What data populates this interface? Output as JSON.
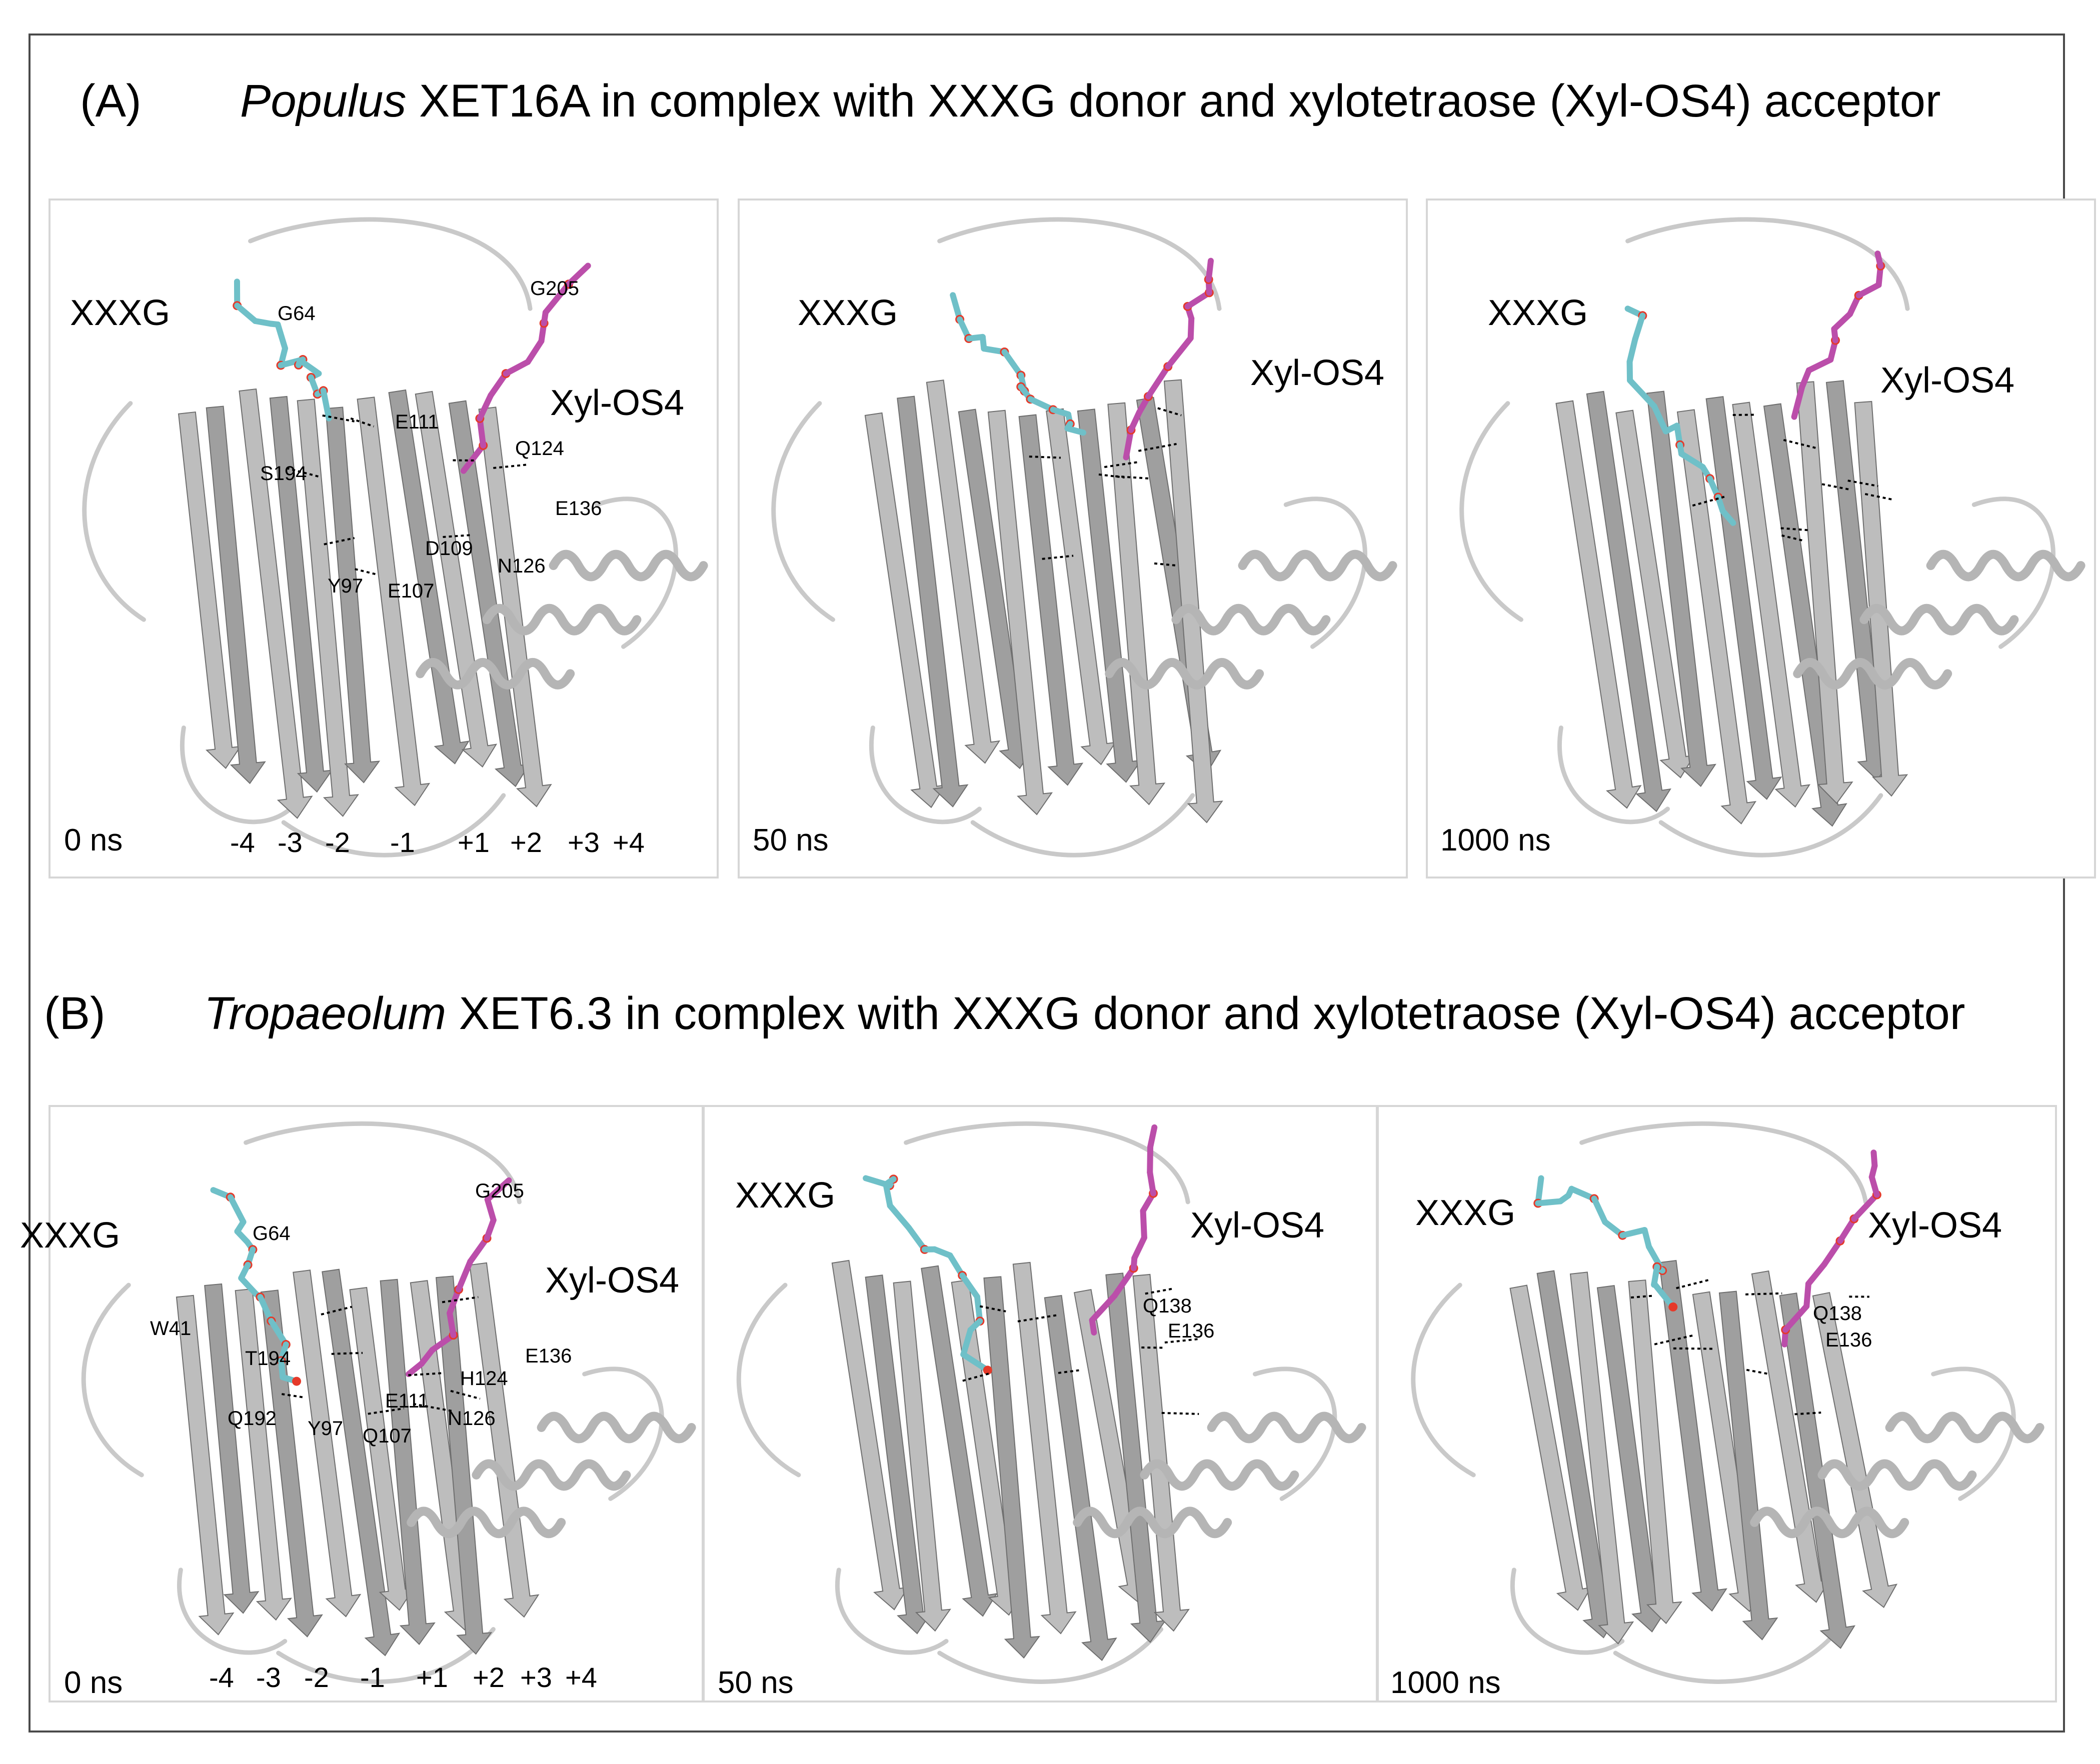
{
  "sections": [
    {
      "tag": "(A)",
      "genus": "Populus",
      "rest": " XET16A in complex with XXXG donor and xylotetraose (Xyl-OS4) acceptor",
      "panels": [
        {
          "time": "0 ns",
          "donor": "XXXG",
          "acceptor": "Xyl-OS4",
          "residues": [
            "G205",
            "G64",
            "E111",
            "Q124",
            "S194",
            "E136",
            "D109",
            "N126",
            "Y97",
            "E107"
          ],
          "subsites": [
            "-4",
            "-3",
            "-2",
            "-1",
            "+1",
            "+2",
            "+3",
            "+4"
          ]
        },
        {
          "time": "50 ns",
          "donor": "XXXG",
          "acceptor": "Xyl-OS4"
        },
        {
          "time": "1000 ns",
          "donor": "XXXG",
          "acceptor": "Xyl-OS4"
        }
      ]
    },
    {
      "tag": "(B)",
      "genus": "Tropaeolum",
      "rest": " XET6.3 in complex with XXXG donor and xylotetraose (Xyl-OS4) acceptor",
      "panels": [
        {
          "time": "0 ns",
          "donor": "XXXG",
          "acceptor": "Xyl-OS4",
          "residues": [
            "G205",
            "G64",
            "W41",
            "T194",
            "E136",
            "H124",
            "E111",
            "Q192",
            "Y97",
            "Q107",
            "N126"
          ],
          "subsites": [
            "-4",
            "-3",
            "-2",
            "-1",
            "+1",
            "+2",
            "+3",
            "+4"
          ]
        },
        {
          "time": "50 ns",
          "donor": "XXXG",
          "acceptor": "Xyl-OS4",
          "residues": [
            "Q138",
            "E136"
          ]
        },
        {
          "time": "1000 ns",
          "donor": "XXXG",
          "acceptor": "Xyl-OS4",
          "residues": [
            "Q138",
            "E136"
          ]
        }
      ]
    }
  ],
  "colors": {
    "donor": "#6fc0c8",
    "acceptor": "#bb4eaa",
    "oxygen": "#e53a2a",
    "nitrogen": "#3340a0",
    "protein": "#c9c9c9",
    "protein_dark": "#8a8a8a"
  }
}
